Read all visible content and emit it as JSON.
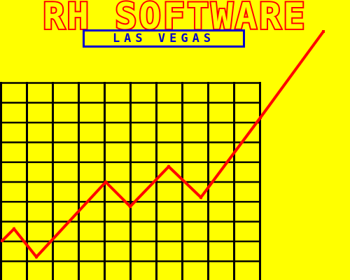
{
  "header": {
    "title": "RH SOFTWARE",
    "subtitle": "LAS VEGAS"
  },
  "colors": {
    "background": "#ffff00",
    "title": "#ff0000",
    "subtitle": "#0000cc",
    "grid": "#000000",
    "line": "#ff0000"
  },
  "chart_data": {
    "type": "line",
    "grid": true,
    "series": [
      {
        "values": [
          [
            -2,
            1
          ],
          [
            0,
            2.5
          ],
          [
            1,
            0.5
          ],
          [
            4.4,
            5.6
          ],
          [
            5.4,
            3.9
          ],
          [
            6.7,
            5.8
          ],
          [
            7.7,
            4.3
          ],
          [
            10,
            9
          ],
          [
            12.3,
            15.1
          ]
        ]
      }
    ],
    "xlim": [
      -0.5,
      13
    ],
    "ylim": [
      0,
      14.8
    ]
  }
}
